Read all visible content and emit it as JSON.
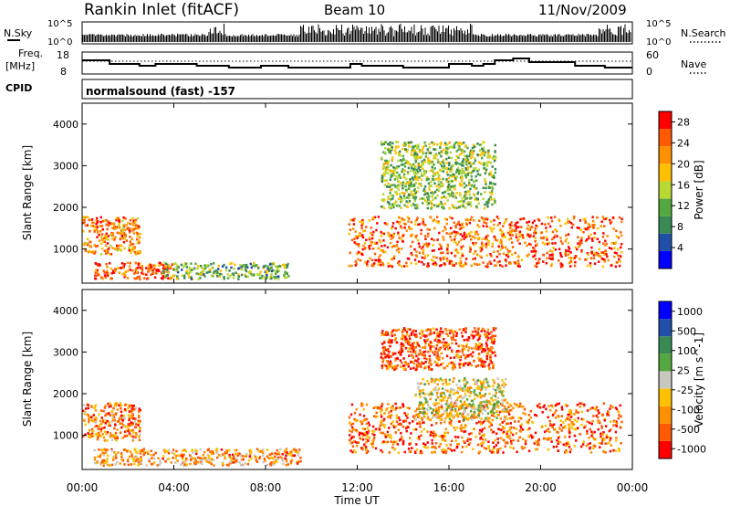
{
  "header": {
    "station": "Rankin Inlet (fitACF)",
    "beam": "Beam 10",
    "date": "11/Nov/2009"
  },
  "strip": {
    "nsky_label": "N.Sky",
    "nsearch_label": "N.Search",
    "freq_label_1": "Freq.",
    "freq_label_2": "[MHz]",
    "nave_label": "Nave",
    "cpid_label": "CPID",
    "cpid_text": "normalsound (fast) -157",
    "nsky_ticks": [
      "10^5",
      "10^0"
    ],
    "nsearch_ticks": [
      "10^5",
      "10^0"
    ],
    "freq_ticks": [
      "18",
      "8"
    ],
    "nave_ticks": [
      "60",
      "0"
    ]
  },
  "colors": {
    "power_scale": [
      "#0000ff",
      "#1f4fa8",
      "#3a8a55",
      "#55a840",
      "#b8d832",
      "#ffc000",
      "#ff9000",
      "#ff5a00",
      "#ff0000"
    ],
    "velocity_scale": [
      "#ff0000",
      "#ff5a00",
      "#ff9000",
      "#ffc000",
      "#c8c8c0",
      "#55a840",
      "#3a8a55",
      "#1f4fa8",
      "#0000ff"
    ]
  },
  "chart_data": [
    {
      "type": "heatmap",
      "title": "",
      "xlabel": "Time UT",
      "ylabel": "Slant Range [km]",
      "x_ticks": [
        "00:00",
        "04:00",
        "08:00",
        "12:00",
        "16:00",
        "20:00",
        "00:00"
      ],
      "y_ticks": [
        "1000",
        "2000",
        "3000",
        "4000"
      ],
      "xlim_hours": [
        0,
        24
      ],
      "ylim_km": [
        180,
        4500
      ],
      "colorbar_label": "Power [dB]",
      "colorbar_ticks": [
        "4",
        "8",
        "12",
        "16",
        "20",
        "24",
        "28"
      ],
      "colorbar_range": [
        0,
        30
      ],
      "echo_regions": [
        {
          "t0": 0.0,
          "t1": 2.5,
          "r0": 900,
          "r1": 1800,
          "level": 0.75
        },
        {
          "t0": 0.5,
          "t1": 4.0,
          "r0": 300,
          "r1": 700,
          "level": 0.85
        },
        {
          "t0": 3.5,
          "t1": 9.0,
          "r0": 300,
          "r1": 700,
          "level": 0.4
        },
        {
          "t0": 11.6,
          "t1": 23.5,
          "r0": 600,
          "r1": 1800,
          "level": 0.8
        },
        {
          "t0": 13.0,
          "t1": 18.0,
          "r0": 2000,
          "r1": 3600,
          "level": 0.45
        }
      ]
    },
    {
      "type": "heatmap",
      "title": "",
      "xlabel": "Time UT",
      "ylabel": "Slant Range [km]",
      "x_ticks": [
        "00:00",
        "04:00",
        "08:00",
        "12:00",
        "16:00",
        "20:00",
        "00:00"
      ],
      "y_ticks": [
        "1000",
        "2000",
        "3000",
        "4000"
      ],
      "xlim_hours": [
        0,
        24
      ],
      "ylim_km": [
        180,
        4500
      ],
      "colorbar_label": "Velocity [m s^-1]",
      "colorbar_ticks": [
        "1000",
        "500",
        "100",
        "25",
        "-25",
        "-100",
        "-500",
        "-1000"
      ],
      "echo_regions": [
        {
          "t0": 0.0,
          "t1": 2.5,
          "r0": 900,
          "r1": 1800,
          "level": 0.25
        },
        {
          "t0": 0.5,
          "t1": 9.5,
          "r0": 300,
          "r1": 700,
          "level": 0.3
        },
        {
          "t0": 11.6,
          "t1": 23.5,
          "r0": 600,
          "r1": 1800,
          "level": 0.2
        },
        {
          "t0": 14.5,
          "t1": 18.5,
          "r0": 1400,
          "r1": 2400,
          "level": 0.45
        },
        {
          "t0": 13.0,
          "t1": 18.0,
          "r0": 2600,
          "r1": 3600,
          "level": 0.15
        }
      ]
    }
  ]
}
